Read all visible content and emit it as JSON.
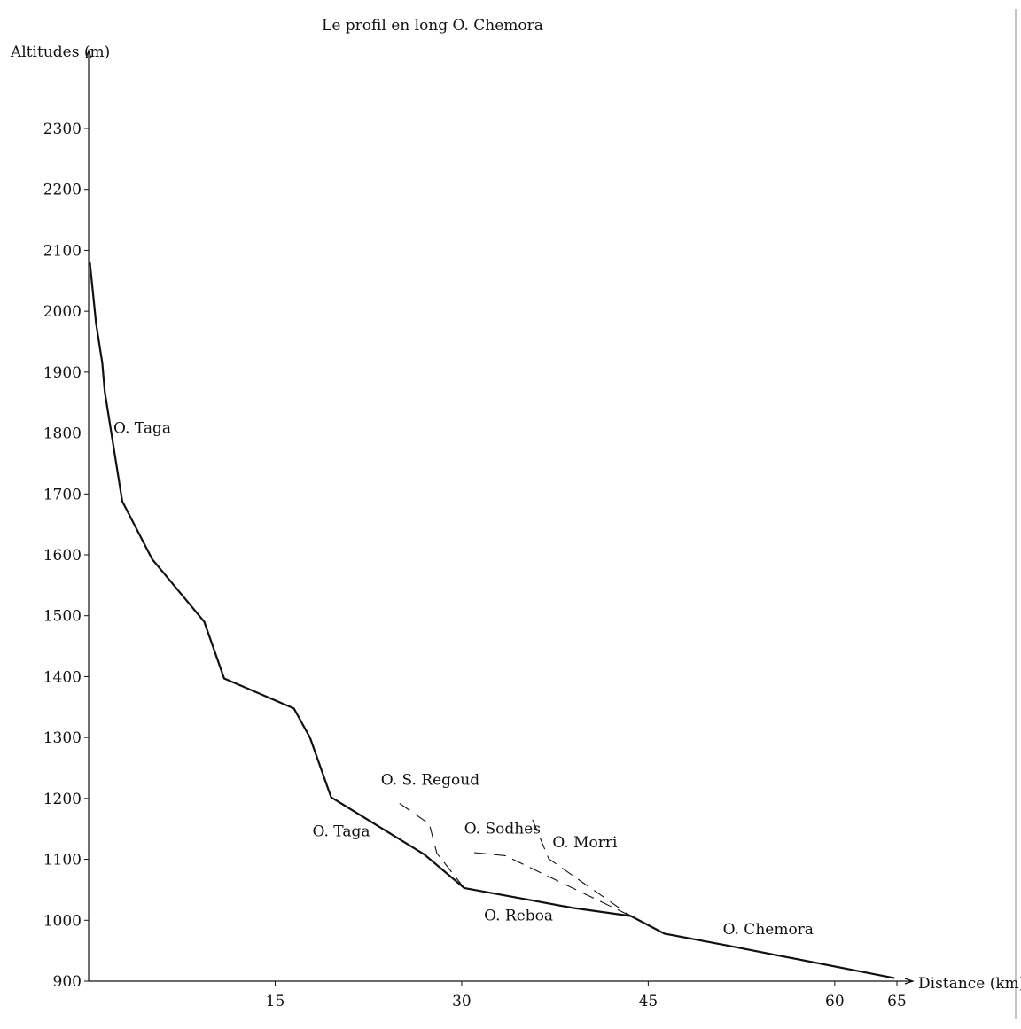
{
  "chart_data": {
    "type": "line",
    "title": "Le profil en long O. Chemora",
    "ylabel": "Altitudes (m)",
    "xlabel": "Distance (km)",
    "xlim": [
      0,
      65
    ],
    "ylim": [
      900,
      2370
    ],
    "x_ticks": [
      15,
      30,
      45,
      60,
      65
    ],
    "y_ticks": [
      900,
      1000,
      1100,
      1200,
      1300,
      1400,
      1500,
      1600,
      1700,
      1800,
      1900,
      2000,
      2100,
      2200,
      2300
    ],
    "grid": false,
    "legend": "none",
    "series": [
      {
        "style": "solid",
        "x": [
          0.1,
          0.6,
          1.1,
          1.3,
          2.7,
          5.1,
          9.3,
          10.9,
          16.5,
          17.8,
          19.5,
          27.0,
          30.2,
          39.0,
          43.6,
          46.3,
          51.0,
          64.8
        ],
        "y": [
          2080,
          1980,
          1915,
          1868,
          1688,
          1593,
          1490,
          1397,
          1348,
          1300,
          1202,
          1108,
          1053,
          1020,
          1007,
          978,
          960,
          905
        ]
      },
      {
        "style": "dashed",
        "x": [
          25.0,
          27.4,
          28.0,
          30.2
        ],
        "y": [
          1192,
          1158,
          1110,
          1053
        ]
      },
      {
        "style": "dashed",
        "x": [
          31.0,
          33.5,
          43.6
        ],
        "y": [
          1111,
          1106,
          1007
        ]
      },
      {
        "style": "dashed",
        "x": [
          35.7,
          37.0,
          43.6
        ],
        "y": [
          1165,
          1101,
          1007
        ]
      }
    ],
    "annotations": [
      {
        "text": "O. Taga",
        "x": 2.0,
        "y": 1800
      },
      {
        "text": "O. Taga",
        "x": 18.0,
        "y": 1138
      },
      {
        "text": "O. S. Regoud",
        "x": 23.5,
        "y": 1222
      },
      {
        "text": "O. Sodhes",
        "x": 30.2,
        "y": 1142
      },
      {
        "text": "O. Morri",
        "x": 37.3,
        "y": 1120
      },
      {
        "text": "O. Reboa",
        "x": 31.8,
        "y": 1000
      },
      {
        "text": "O. Chemora",
        "x": 51.0,
        "y": 977
      }
    ]
  }
}
